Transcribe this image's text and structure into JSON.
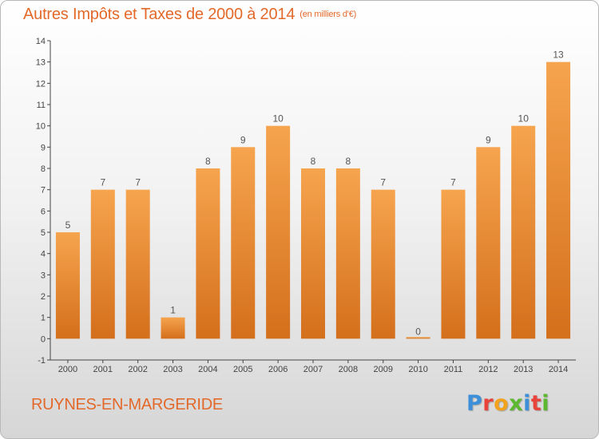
{
  "header": {
    "title": "Autres Impôts et Taxes de 2000 à 2014",
    "unit": "(en milliers d'€)"
  },
  "footer": {
    "commune": "RUYNES-EN-MARGERIDE",
    "logo_text": "Proxiti"
  },
  "colors": {
    "bar_light": "#f6a44e",
    "bar_dark": "#d46f1c",
    "accent": "#e3692a"
  },
  "chart_data": {
    "type": "bar",
    "title": "Autres Impôts et Taxes de 2000 à 2014",
    "subtitle": "(en milliers d'€)",
    "categories": [
      "2000",
      "2001",
      "2002",
      "2003",
      "2004",
      "2005",
      "2006",
      "2007",
      "2008",
      "2009",
      "2010",
      "2011",
      "2012",
      "2013",
      "2014"
    ],
    "values": [
      5,
      7,
      7,
      1,
      8,
      9,
      10,
      8,
      8,
      7,
      0,
      7,
      9,
      10,
      13
    ],
    "ylim": [
      -1,
      14
    ],
    "yticks": [
      -1,
      0,
      1,
      2,
      3,
      4,
      5,
      6,
      7,
      8,
      9,
      10,
      11,
      12,
      13,
      14
    ],
    "grid": false,
    "data_labels": true
  }
}
